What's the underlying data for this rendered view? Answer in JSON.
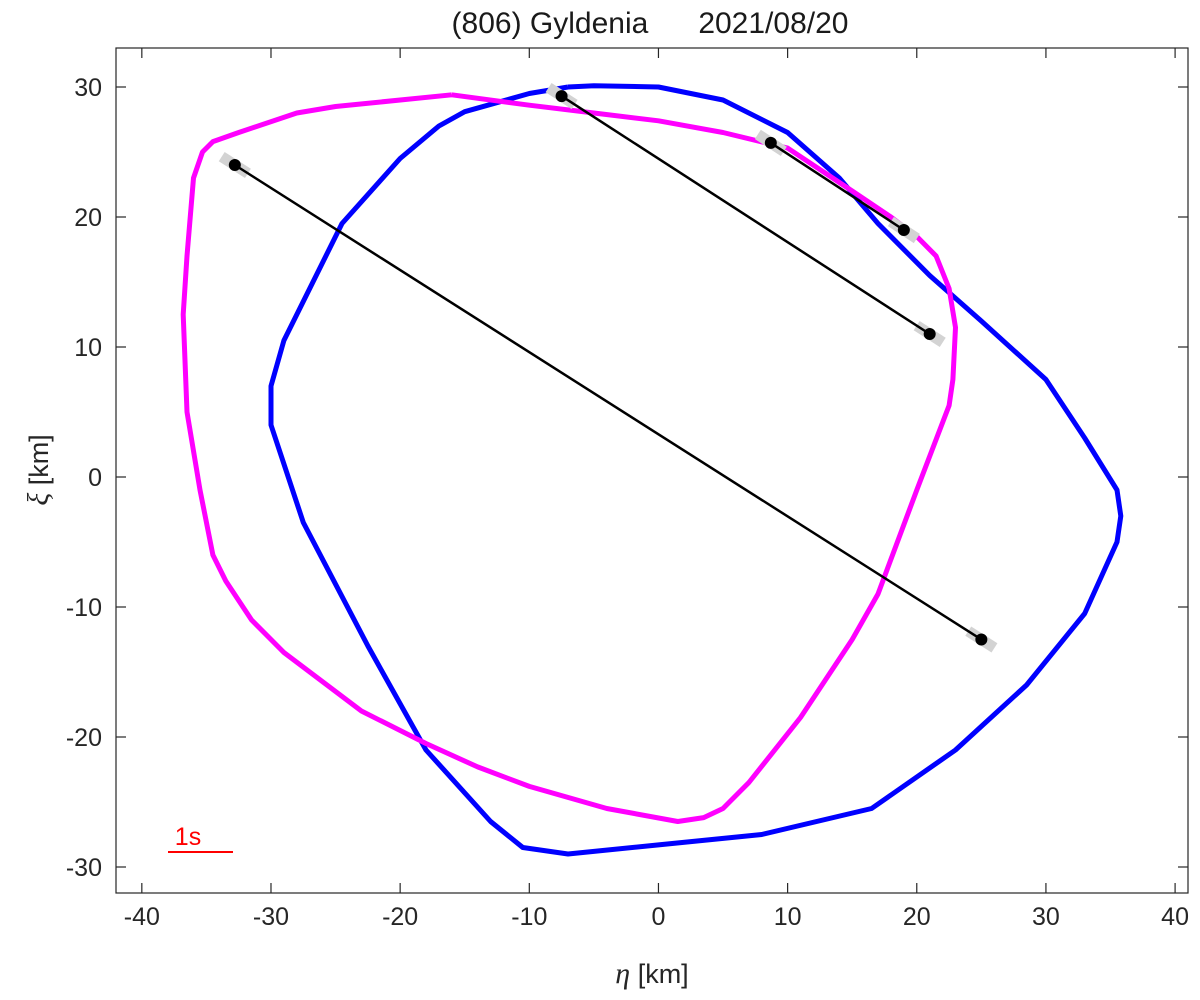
{
  "chart_data": {
    "type": "line",
    "title": "(806) Gyldenia      2021/08/20",
    "xlabel": {
      "symbol": "η",
      "unit": " [km]"
    },
    "ylabel": {
      "symbol": "ξ",
      "unit": " [km]"
    },
    "xlim": [
      -42,
      41
    ],
    "ylim": [
      -32,
      33
    ],
    "xticks": [
      -40,
      -30,
      -20,
      -10,
      0,
      10,
      20,
      30,
      40
    ],
    "yticks": [
      -30,
      -20,
      -10,
      0,
      10,
      20,
      30
    ],
    "grid": false,
    "colors": {
      "blue_outline": "#0000ff",
      "magenta_outline": "#ff00ff",
      "chords": "#000000",
      "chord_uncertainty": "#d3d3d3",
      "scale_bar": "#ff0000"
    },
    "series": [
      {
        "color": "#0000ff",
        "points": [
          [
            -7,
            30
          ],
          [
            -5,
            30.1
          ],
          [
            0,
            30
          ],
          [
            5,
            29
          ],
          [
            10,
            26.5
          ],
          [
            14,
            23
          ],
          [
            17,
            19.5
          ],
          [
            21,
            15.5
          ],
          [
            25,
            12
          ],
          [
            30,
            7.5
          ],
          [
            33,
            3
          ],
          [
            35.5,
            -1
          ],
          [
            35.8,
            -3
          ],
          [
            35.5,
            -5
          ],
          [
            33,
            -10.5
          ],
          [
            28.5,
            -16
          ],
          [
            23,
            -21
          ],
          [
            16.5,
            -25.5
          ],
          [
            8,
            -27.5
          ],
          [
            0,
            -28.3
          ],
          [
            -7,
            -29
          ],
          [
            -10.5,
            -28.5
          ],
          [
            -13,
            -26.5
          ],
          [
            -18,
            -21
          ],
          [
            -22.5,
            -13
          ],
          [
            -27.5,
            -3.5
          ],
          [
            -30,
            4
          ],
          [
            -30,
            7
          ],
          [
            -29,
            10.5
          ],
          [
            -24.5,
            19.5
          ],
          [
            -20,
            24.5
          ],
          [
            -17,
            27
          ],
          [
            -15,
            28.1
          ],
          [
            -10,
            29.5
          ],
          [
            -7,
            30
          ]
        ]
      },
      {
        "color": "#ff00ff",
        "points": [
          [
            -16,
            29.4
          ],
          [
            -10,
            28.6
          ],
          [
            -5,
            28
          ],
          [
            0,
            27.4
          ],
          [
            5,
            26.5
          ],
          [
            10,
            25.3
          ],
          [
            15,
            22
          ],
          [
            18,
            20
          ],
          [
            20,
            18.5
          ],
          [
            21.5,
            17
          ],
          [
            22.5,
            14.5
          ],
          [
            23,
            11.5
          ],
          [
            22.8,
            7.5
          ],
          [
            22.5,
            5.5
          ],
          [
            20,
            -1
          ],
          [
            17,
            -9
          ],
          [
            15,
            -12.5
          ],
          [
            11,
            -18.5
          ],
          [
            7,
            -23.5
          ],
          [
            5,
            -25.5
          ],
          [
            3.5,
            -26.2
          ],
          [
            1.5,
            -26.5
          ],
          [
            -4,
            -25.5
          ],
          [
            -10,
            -23.8
          ],
          [
            -14,
            -22.3
          ],
          [
            -18,
            -20.5
          ],
          [
            -23,
            -18
          ],
          [
            -29,
            -13.5
          ],
          [
            -31.5,
            -11
          ],
          [
            -33.5,
            -8
          ],
          [
            -34.5,
            -6
          ],
          [
            -35.5,
            -1
          ],
          [
            -36.5,
            5
          ],
          [
            -36.8,
            12.5
          ],
          [
            -36.5,
            17
          ],
          [
            -36,
            23
          ],
          [
            -35.3,
            25
          ],
          [
            -34.5,
            25.8
          ],
          [
            -32.5,
            26.5
          ],
          [
            -28,
            28
          ],
          [
            -25,
            28.5
          ],
          [
            -16,
            29.4
          ]
        ]
      }
    ],
    "chords": [
      {
        "start": [
          -32.8,
          24.0
        ],
        "end": [
          25.0,
          -12.5
        ]
      },
      {
        "start": [
          -7.5,
          29.3
        ],
        "end": [
          21.0,
          11.0
        ]
      },
      {
        "start": [
          8.7,
          25.7
        ],
        "end": [
          19.0,
          19.0
        ]
      }
    ],
    "scale_bar": {
      "label": "1s"
    }
  }
}
